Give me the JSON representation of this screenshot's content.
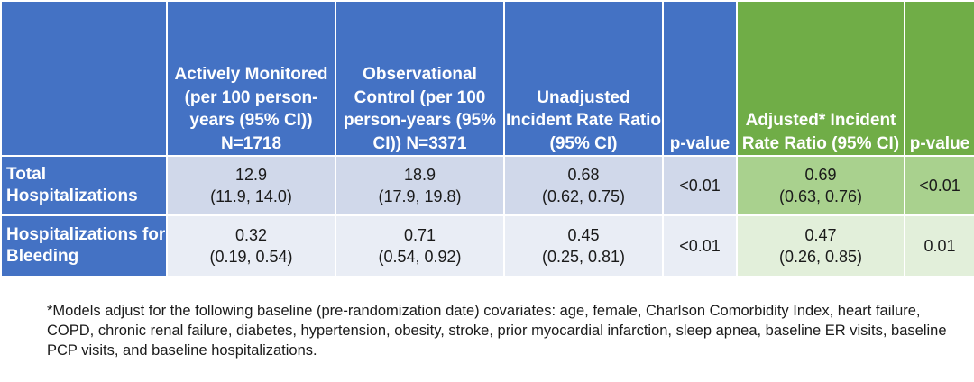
{
  "header": {
    "col_empty": "",
    "col_active": "Actively Monitored (per 100 person-years (95% CI)) N=1718",
    "col_control": "Observational Control (per 100 person-years (95% CI)) N=3371",
    "col_unadjusted": "Unadjusted Incident Rate Ratio (95% CI)",
    "col_pvalue1": "p-value",
    "col_adjusted": "Adjusted* Incident Rate Ratio (95% CI)",
    "col_pvalue2": "p-value"
  },
  "rows": [
    {
      "label": "Total Hospitalizations",
      "active_est": "12.9",
      "active_ci": "(11.9, 14.0)",
      "control_est": "18.9",
      "control_ci": "(17.9, 19.8)",
      "unadj_est": "0.68",
      "unadj_ci": "(0.62, 0.75)",
      "p1": "<0.01",
      "adj_est": "0.69",
      "adj_ci": "(0.63, 0.76)",
      "p2": "<0.01"
    },
    {
      "label": "Hospitalizations for Bleeding",
      "active_est": "0.32",
      "active_ci": "(0.19, 0.54)",
      "control_est": "0.71",
      "control_ci": "(0.54, 0.92)",
      "unadj_est": "0.45",
      "unadj_ci": "(0.25, 0.81)",
      "p1": "<0.01",
      "adj_est": "0.47",
      "adj_ci": "(0.26, 0.85)",
      "p2": "0.01"
    }
  ],
  "footnote": "*Models adjust for the following baseline (pre-randomization date) covariates: age, female, Charlson Comorbidity Index, heart failure, COPD, chronic renal failure, diabetes, hypertension, obesity, stroke, prior myocardial infarction, sleep apnea, baseline ER visits, baseline PCP visits, and baseline hospitalizations.",
  "colors": {
    "header_blue": "#4472c4",
    "header_green": "#70ad47",
    "row1_blue": "#d0d8ea",
    "row2_blue": "#e9edf5",
    "row1_green": "#a9d18e",
    "row2_green": "#e2efda"
  }
}
